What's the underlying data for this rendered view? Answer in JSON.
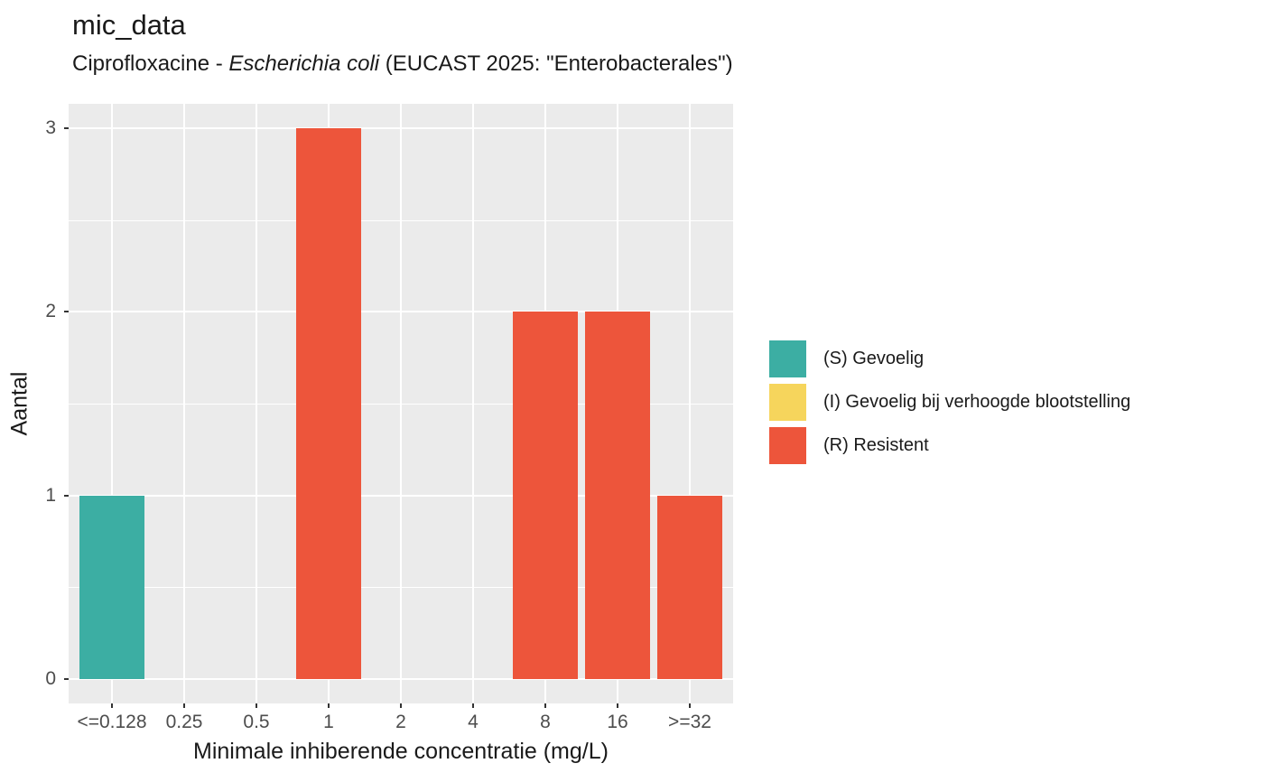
{
  "title": "mic_data",
  "subtitle": {
    "prefix": "Ciprofloxacine - ",
    "italic": "Escherichia coli",
    "suffix": " (EUCAST 2025: \"Enterobacterales\")"
  },
  "colors": {
    "S": "#3CAEA3",
    "I": "#F6D55C",
    "R": "#ED553B",
    "panel_background": "#EBEBEB",
    "gridline": "#FFFFFF",
    "tick_mark": "#333333",
    "tick_label": "#4D4D4D",
    "text": "#1a1a1a"
  },
  "chart_data": {
    "type": "bar",
    "title": "mic_data",
    "subtitle": "Ciprofloxacine - Escherichia coli (EUCAST 2025: \"Enterobacterales\")",
    "categories": [
      "<=0.128",
      "0.25",
      "0.5",
      "1",
      "2",
      "4",
      "8",
      "16",
      ">=32"
    ],
    "values": [
      1,
      0,
      0,
      3,
      0,
      0,
      2,
      2,
      1
    ],
    "interpretations": [
      "S",
      "",
      "",
      "R",
      "",
      "",
      "R",
      "R",
      "R"
    ],
    "xlabel": "Minimale inhiberende concentratie (mg/L)",
    "ylabel": "Aantal",
    "ylim": [
      0,
      3
    ],
    "yticks": [
      0,
      1,
      2,
      3
    ],
    "yticks_minor": [
      0.5,
      1.5,
      2.5
    ],
    "grid": true,
    "legend_position": "right"
  },
  "legend": {
    "items": [
      {
        "label": "(S) Gevoelig",
        "sir": "S",
        "color": "#3CAEA3"
      },
      {
        "label": "(I) Gevoelig bij verhoogde blootstelling",
        "sir": "I",
        "color": "#F6D55C"
      },
      {
        "label": "(R) Resistent",
        "sir": "R",
        "color": "#ED553B"
      }
    ]
  }
}
